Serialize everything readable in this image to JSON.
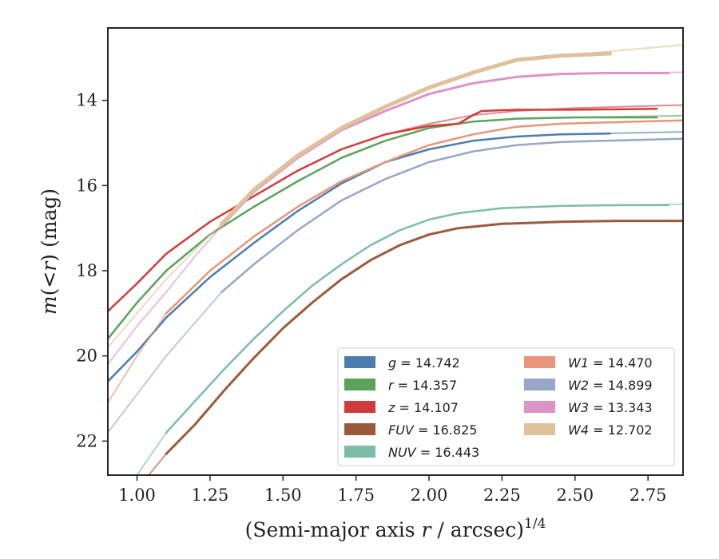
{
  "chart_data": {
    "type": "line",
    "title": "",
    "xlabel": "(Semi-major axis r / arcsec)1/4",
    "xlabel_parts": {
      "prefix": "(Semi-major axis ",
      "var": "r",
      "mid": " / arcsec)",
      "sup": "1/4"
    },
    "ylabel": "m(<r) (mag)",
    "ylabel_parts": {
      "m": "m",
      "open": "(",
      "lt": "<",
      "r": "r",
      "close": ")",
      "unit": " (mag)"
    },
    "xlim": [
      0.9,
      2.87
    ],
    "ylim": [
      22.8,
      12.3
    ],
    "y_inverted": true,
    "grid": false,
    "legend_position": "lower-right",
    "x_ticks": [
      1.0,
      1.25,
      1.5,
      1.75,
      2.0,
      2.25,
      2.5,
      2.75
    ],
    "x_tick_labels": [
      "1.00",
      "1.25",
      "1.50",
      "1.75",
      "2.00",
      "2.25",
      "2.50",
      "2.75"
    ],
    "y_ticks": [
      14,
      16,
      18,
      20,
      22
    ],
    "y_tick_labels": [
      "14",
      "16",
      "18",
      "20",
      "22"
    ],
    "series": [
      {
        "name": "g",
        "label_value": "14.742",
        "color": "#4c7daf",
        "x": [
          0.9,
          1.0,
          1.1,
          1.25,
          1.4,
          1.55,
          1.7,
          1.85,
          2.0,
          2.15,
          2.3,
          2.45,
          2.62
        ],
        "y": [
          20.6,
          19.9,
          19.1,
          18.15,
          17.35,
          16.6,
          15.95,
          15.45,
          15.15,
          14.95,
          14.85,
          14.8,
          14.78
        ],
        "model_x": [
          0.9,
          1.0,
          1.1,
          1.25,
          1.4,
          1.55,
          1.7,
          1.85,
          2.0,
          2.15,
          2.3,
          2.45,
          2.87
        ],
        "model_y": [
          20.6,
          19.9,
          19.1,
          18.15,
          17.35,
          16.6,
          15.95,
          15.45,
          15.15,
          14.95,
          14.85,
          14.8,
          14.74
        ]
      },
      {
        "name": "r",
        "label_value": "14.357",
        "color": "#5ba35b",
        "x": [
          0.9,
          1.0,
          1.1,
          1.25,
          1.4,
          1.55,
          1.7,
          1.85,
          2.0,
          2.15,
          2.3,
          2.5,
          2.78
        ],
        "y": [
          19.6,
          18.75,
          18.0,
          17.15,
          16.5,
          15.9,
          15.35,
          14.95,
          14.65,
          14.5,
          14.43,
          14.4,
          14.4
        ],
        "model_x": [
          0.9,
          1.0,
          1.1,
          1.25,
          1.4,
          1.55,
          1.7,
          1.85,
          2.0,
          2.15,
          2.3,
          2.5,
          2.87
        ],
        "model_y": [
          19.6,
          18.75,
          18.0,
          17.15,
          16.5,
          15.9,
          15.35,
          14.95,
          14.65,
          14.5,
          14.43,
          14.4,
          14.36
        ]
      },
      {
        "name": "z",
        "label_value": "14.107",
        "color": "#d23b3b",
        "x": [
          0.9,
          1.0,
          1.1,
          1.25,
          1.4,
          1.55,
          1.7,
          1.85,
          2.0,
          2.1,
          2.15,
          2.18,
          2.3,
          2.5,
          2.78
        ],
        "y": [
          18.95,
          18.3,
          17.6,
          16.85,
          16.25,
          15.65,
          15.15,
          14.8,
          14.6,
          14.55,
          14.35,
          14.25,
          14.22,
          14.22,
          14.2
        ],
        "model_x": [
          0.9,
          1.0,
          1.1,
          1.25,
          1.4,
          1.55,
          1.7,
          1.85,
          2.0,
          2.15,
          2.3,
          2.5,
          2.87
        ],
        "model_y": [
          18.95,
          18.3,
          17.6,
          16.85,
          16.25,
          15.65,
          15.15,
          14.8,
          14.55,
          14.35,
          14.25,
          14.18,
          14.11
        ]
      },
      {
        "name": "FUV",
        "label_value": "16.825",
        "color": "#9b5a3c",
        "x": [
          1.1,
          1.2,
          1.3,
          1.4,
          1.5,
          1.6,
          1.7,
          1.8,
          1.9,
          2.0,
          2.1,
          2.25,
          2.45,
          2.65,
          2.87
        ],
        "y": [
          22.3,
          21.6,
          20.8,
          20.05,
          19.35,
          18.75,
          18.2,
          17.75,
          17.4,
          17.15,
          17.0,
          16.9,
          16.85,
          16.83,
          16.83
        ],
        "model_x": [
          1.04,
          1.1,
          1.2,
          1.3,
          1.4,
          1.5,
          1.6,
          1.7,
          1.8,
          1.9,
          2.0,
          2.1,
          2.25,
          2.45,
          2.87
        ],
        "model_y": [
          22.8,
          22.3,
          21.6,
          20.8,
          20.05,
          19.35,
          18.75,
          18.2,
          17.75,
          17.4,
          17.15,
          17.0,
          16.9,
          16.85,
          16.82
        ]
      },
      {
        "name": "NUV",
        "label_value": "16.443",
        "color": "#7dbda8",
        "x": [
          1.1,
          1.2,
          1.3,
          1.4,
          1.5,
          1.6,
          1.7,
          1.8,
          1.9,
          2.0,
          2.1,
          2.25,
          2.45,
          2.65,
          2.82
        ],
        "y": [
          21.8,
          21.05,
          20.3,
          19.6,
          18.95,
          18.35,
          17.85,
          17.4,
          17.05,
          16.8,
          16.65,
          16.53,
          16.48,
          16.46,
          16.46
        ],
        "model_x": [
          1.0,
          1.1,
          1.2,
          1.3,
          1.4,
          1.5,
          1.6,
          1.7,
          1.8,
          1.9,
          2.0,
          2.1,
          2.25,
          2.45,
          2.87
        ],
        "model_y": [
          22.8,
          21.8,
          21.05,
          20.3,
          19.6,
          18.95,
          18.35,
          17.85,
          17.4,
          17.05,
          16.8,
          16.65,
          16.53,
          16.48,
          16.44
        ]
      },
      {
        "name": "W1",
        "label_value": "14.470",
        "color": "#e8967a",
        "x": [
          1.1,
          1.25,
          1.4,
          1.55,
          1.7,
          1.85,
          2.0,
          2.15,
          2.3,
          2.45,
          2.6,
          2.87
        ],
        "y": [
          19.0,
          18.0,
          17.2,
          16.5,
          15.9,
          15.45,
          15.05,
          14.8,
          14.62,
          14.55,
          14.52,
          14.47
        ],
        "model_x": [
          0.9,
          1.0,
          1.1,
          1.25,
          1.4,
          1.55,
          1.7,
          1.85,
          2.0,
          2.15,
          2.3,
          2.45,
          2.6,
          2.87
        ],
        "model_y": [
          21.1,
          20.0,
          19.0,
          18.0,
          17.2,
          16.5,
          15.9,
          15.45,
          15.05,
          14.8,
          14.62,
          14.55,
          14.52,
          14.47
        ]
      },
      {
        "name": "W2",
        "label_value": "14.899",
        "color": "#98a6c8",
        "x": [
          1.29,
          1.4,
          1.55,
          1.7,
          1.85,
          2.0,
          2.15,
          2.3,
          2.45,
          2.6,
          2.87
        ],
        "y": [
          18.5,
          17.85,
          17.05,
          16.35,
          15.85,
          15.45,
          15.2,
          15.05,
          14.98,
          14.95,
          14.9
        ],
        "model_x": [
          0.9,
          1.0,
          1.1,
          1.29,
          1.4,
          1.55,
          1.7,
          1.85,
          2.0,
          2.15,
          2.3,
          2.45,
          2.6,
          2.87
        ],
        "model_y": [
          21.8,
          20.9,
          20.0,
          18.5,
          17.85,
          17.05,
          16.35,
          15.85,
          15.45,
          15.2,
          15.05,
          14.98,
          14.95,
          14.9
        ]
      },
      {
        "name": "W3",
        "label_value": "13.343",
        "color": "#dd93c6",
        "x": [
          1.29,
          1.4,
          1.55,
          1.7,
          1.85,
          2.0,
          2.15,
          2.3,
          2.45,
          2.6,
          2.82
        ],
        "y": [
          16.95,
          16.15,
          15.35,
          14.7,
          14.25,
          13.85,
          13.6,
          13.45,
          13.38,
          13.36,
          13.36
        ],
        "model_x": [
          0.9,
          1.0,
          1.1,
          1.2,
          1.29,
          1.4,
          1.55,
          1.7,
          1.85,
          2.0,
          2.15,
          2.3,
          2.45,
          2.6,
          2.87
        ],
        "model_y": [
          20.2,
          19.3,
          18.5,
          17.65,
          16.95,
          16.15,
          15.35,
          14.7,
          14.25,
          13.85,
          13.6,
          13.45,
          13.38,
          13.36,
          13.34
        ]
      },
      {
        "name": "W4",
        "label_value": "12.702",
        "color": "#dfc29b",
        "x": [
          1.29,
          1.4,
          1.55,
          1.7,
          1.85,
          2.0,
          2.15,
          2.3,
          2.45,
          2.62
        ],
        "y": [
          16.9,
          16.1,
          15.3,
          14.65,
          14.15,
          13.7,
          13.35,
          13.05,
          12.95,
          12.9
        ],
        "model_x": [
          0.9,
          1.0,
          1.1,
          1.2,
          1.29,
          1.4,
          1.55,
          1.7,
          1.85,
          2.0,
          2.15,
          2.3,
          2.45,
          2.62,
          2.87
        ],
        "model_y": [
          19.8,
          19.0,
          18.2,
          17.5,
          16.9,
          16.1,
          15.3,
          14.65,
          14.15,
          13.7,
          13.35,
          13.05,
          12.95,
          12.85,
          12.7
        ]
      }
    ]
  }
}
